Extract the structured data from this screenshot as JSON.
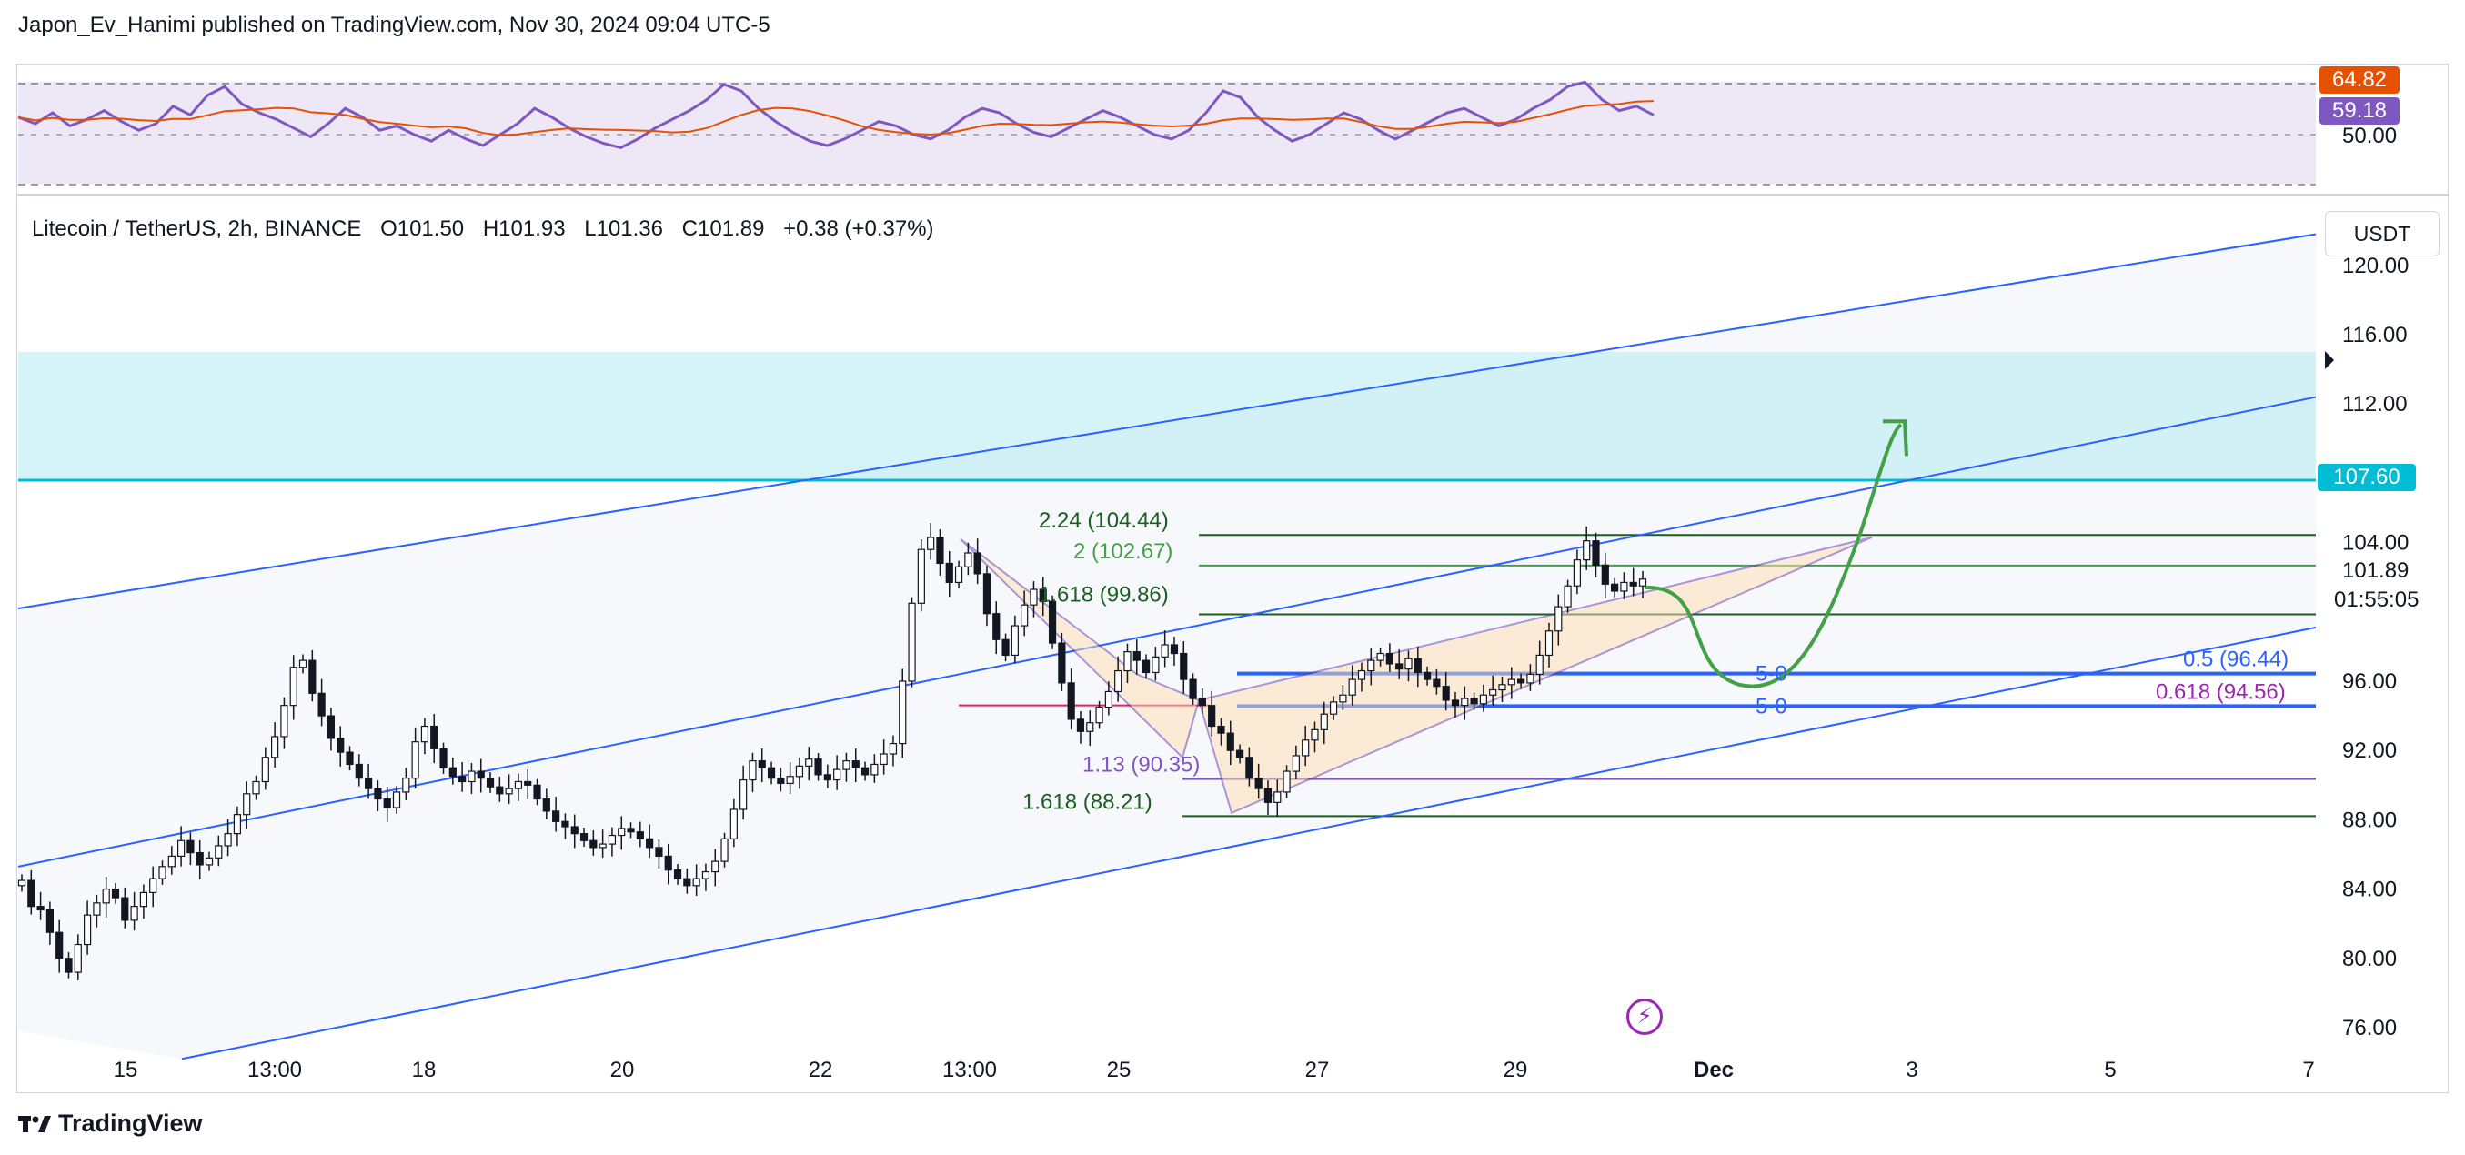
{
  "header": {
    "publish_line": "Japon_Ev_Hanimi published on TradingView.com, Nov 30, 2024 09:04 UTC-5"
  },
  "symbol": {
    "name": "Litecoin / TetherUS, 2h, BINANCE",
    "open": "O101.50",
    "high": "H101.93",
    "low": "L101.36",
    "close": "C101.89",
    "change": "+0.38 (+0.37%)"
  },
  "currency_button": "USDT",
  "rsi_panel": {
    "level_label": "50.00",
    "tag_ma": "64.82",
    "tag_rsi": "59.18",
    "colors": {
      "rsi": "#7e57c2",
      "ma": "#e65100",
      "band": "#ede7f6"
    }
  },
  "price_axis": {
    "ticks": [
      "120.00",
      "116.00",
      "112.00",
      "104.00",
      "96.00",
      "92.00",
      "88.00",
      "84.00",
      "80.00",
      "76.00"
    ],
    "zone_level_tag": "107.60",
    "last_price": "101.89",
    "countdown": "01:55:05",
    "colors": {
      "zone_tag": "#00bcd4"
    }
  },
  "time_axis": {
    "ticks": [
      "15",
      "13:00",
      "18",
      "20",
      "22",
      "13:00",
      "25",
      "27",
      "29",
      "Dec",
      "3",
      "5",
      "7"
    ]
  },
  "fib_labels": {
    "f224": "2.24 (104.44)",
    "f2": "2 (102.67)",
    "f1618_up": "1.618 (99.86)",
    "f113": "1.13 (90.35)",
    "f1618_low": "1.618 (88.21)",
    "f05": "0.5 (96.44)",
    "f0618": "0.618 (94.56)",
    "p50_a": "5-0",
    "p50_b": "5-0"
  },
  "footer": {
    "logo_text": "TradingView"
  },
  "chart_data": {
    "type": "candlestick",
    "symbol": "Litecoin / TetherUS",
    "interval": "2h",
    "exchange": "BINANCE",
    "ylim": [
      74,
      122
    ],
    "zone": {
      "from": 107.6,
      "to": 115.0
    },
    "last": 101.89,
    "x_ticks": [
      "15",
      "13:00",
      "18",
      "20",
      "22",
      "13:00",
      "25",
      "27",
      "29",
      "Dec",
      "3",
      "5",
      "7"
    ],
    "levels": [
      104.44,
      102.67,
      99.86,
      96.44,
      94.56,
      90.35,
      88.21
    ],
    "closes": [
      84.5,
      83.0,
      82.8,
      81.5,
      80.0,
      79.2,
      80.8,
      82.5,
      83.2,
      84.0,
      83.5,
      82.2,
      83.0,
      83.8,
      84.6,
      85.3,
      85.9,
      86.8,
      86.1,
      85.4,
      85.8,
      86.5,
      87.2,
      88.3,
      89.5,
      90.2,
      91.6,
      92.8,
      94.6,
      96.8,
      97.2,
      95.3,
      94.0,
      92.7,
      91.9,
      91.2,
      90.4,
      89.8,
      89.2,
      88.7,
      89.6,
      90.4,
      92.5,
      93.4,
      92.1,
      91.0,
      90.5,
      90.2,
      90.8,
      90.4,
      89.9,
      89.5,
      89.8,
      90.2,
      90.0,
      89.2,
      88.5,
      87.9,
      87.6,
      87.2,
      86.8,
      86.4,
      86.6,
      87.1,
      87.5,
      87.3,
      86.9,
      86.4,
      85.9,
      85.1,
      84.6,
      84.2,
      84.6,
      85.0,
      85.6,
      86.9,
      88.6,
      90.3,
      91.4,
      91.0,
      90.4,
      90.1,
      90.5,
      91.1,
      91.5,
      90.6,
      90.3,
      90.9,
      91.4,
      91.0,
      90.6,
      91.2,
      91.8,
      92.4,
      96.0,
      100.5,
      103.6,
      104.3,
      102.8,
      101.7,
      102.6,
      103.4,
      102.2,
      99.9,
      98.4,
      97.5,
      99.2,
      100.4,
      101.3,
      100.6,
      98.2,
      95.9,
      93.8,
      93.1,
      93.6,
      94.5,
      95.4,
      96.6,
      97.7,
      97.2,
      96.5,
      97.4,
      98.1,
      97.6,
      96.1,
      95.0,
      94.6,
      93.4,
      93.0,
      92.0,
      91.6,
      90.4,
      89.8,
      89.0,
      89.6,
      90.8,
      91.7,
      92.6,
      93.2,
      94.1,
      94.8,
      95.2,
      96.1,
      96.6,
      97.2,
      97.6,
      97.0,
      96.7,
      97.3,
      96.5,
      96.1,
      95.7,
      94.9,
      94.6,
      95.0,
      94.7,
      95.2,
      95.5,
      95.8,
      96.1,
      95.9,
      96.4,
      97.5,
      98.9,
      100.3,
      101.5,
      103.0,
      104.1,
      102.7,
      101.6,
      101.2,
      101.7,
      101.5,
      101.89
    ]
  }
}
